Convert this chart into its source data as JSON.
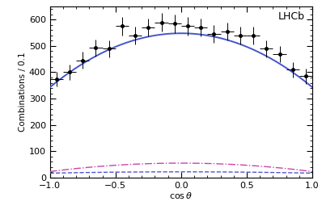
{
  "title": "LHCb",
  "xlabel": "cosθ",
  "ylabel": "Combinations / 0.1",
  "xlim": [
    -1,
    1
  ],
  "ylim": [
    0,
    650
  ],
  "yticks": [
    0,
    100,
    200,
    300,
    400,
    500,
    600
  ],
  "xticks": [
    -1,
    -0.5,
    0,
    0.5,
    1
  ],
  "data_x": [
    -0.95,
    -0.85,
    -0.75,
    -0.65,
    -0.55,
    -0.45,
    -0.35,
    -0.25,
    -0.15,
    -0.05,
    0.05,
    0.15,
    0.25,
    0.35,
    0.45,
    0.55,
    0.65,
    0.75,
    0.85,
    0.95
  ],
  "data_y": [
    375,
    400,
    445,
    493,
    490,
    575,
    540,
    570,
    590,
    585,
    575,
    570,
    545,
    555,
    540,
    540,
    490,
    470,
    410,
    385
  ],
  "data_yerr": [
    28,
    30,
    32,
    32,
    32,
    35,
    33,
    34,
    35,
    35,
    35,
    34,
    34,
    34,
    33,
    33,
    32,
    31,
    29,
    28
  ],
  "data_xerr": 0.05,
  "fit_color": "#4455cc",
  "dash_dot_color": "#cc44aa",
  "dashed_color": "#5555cc",
  "background_color": "#ffffff",
  "a_main": -205,
  "b_main": 0,
  "c_main": 548,
  "a_dd": -32,
  "c_dd": 55,
  "dd_flat": 8,
  "dashed_peak": 22,
  "dashed_a": -5
}
